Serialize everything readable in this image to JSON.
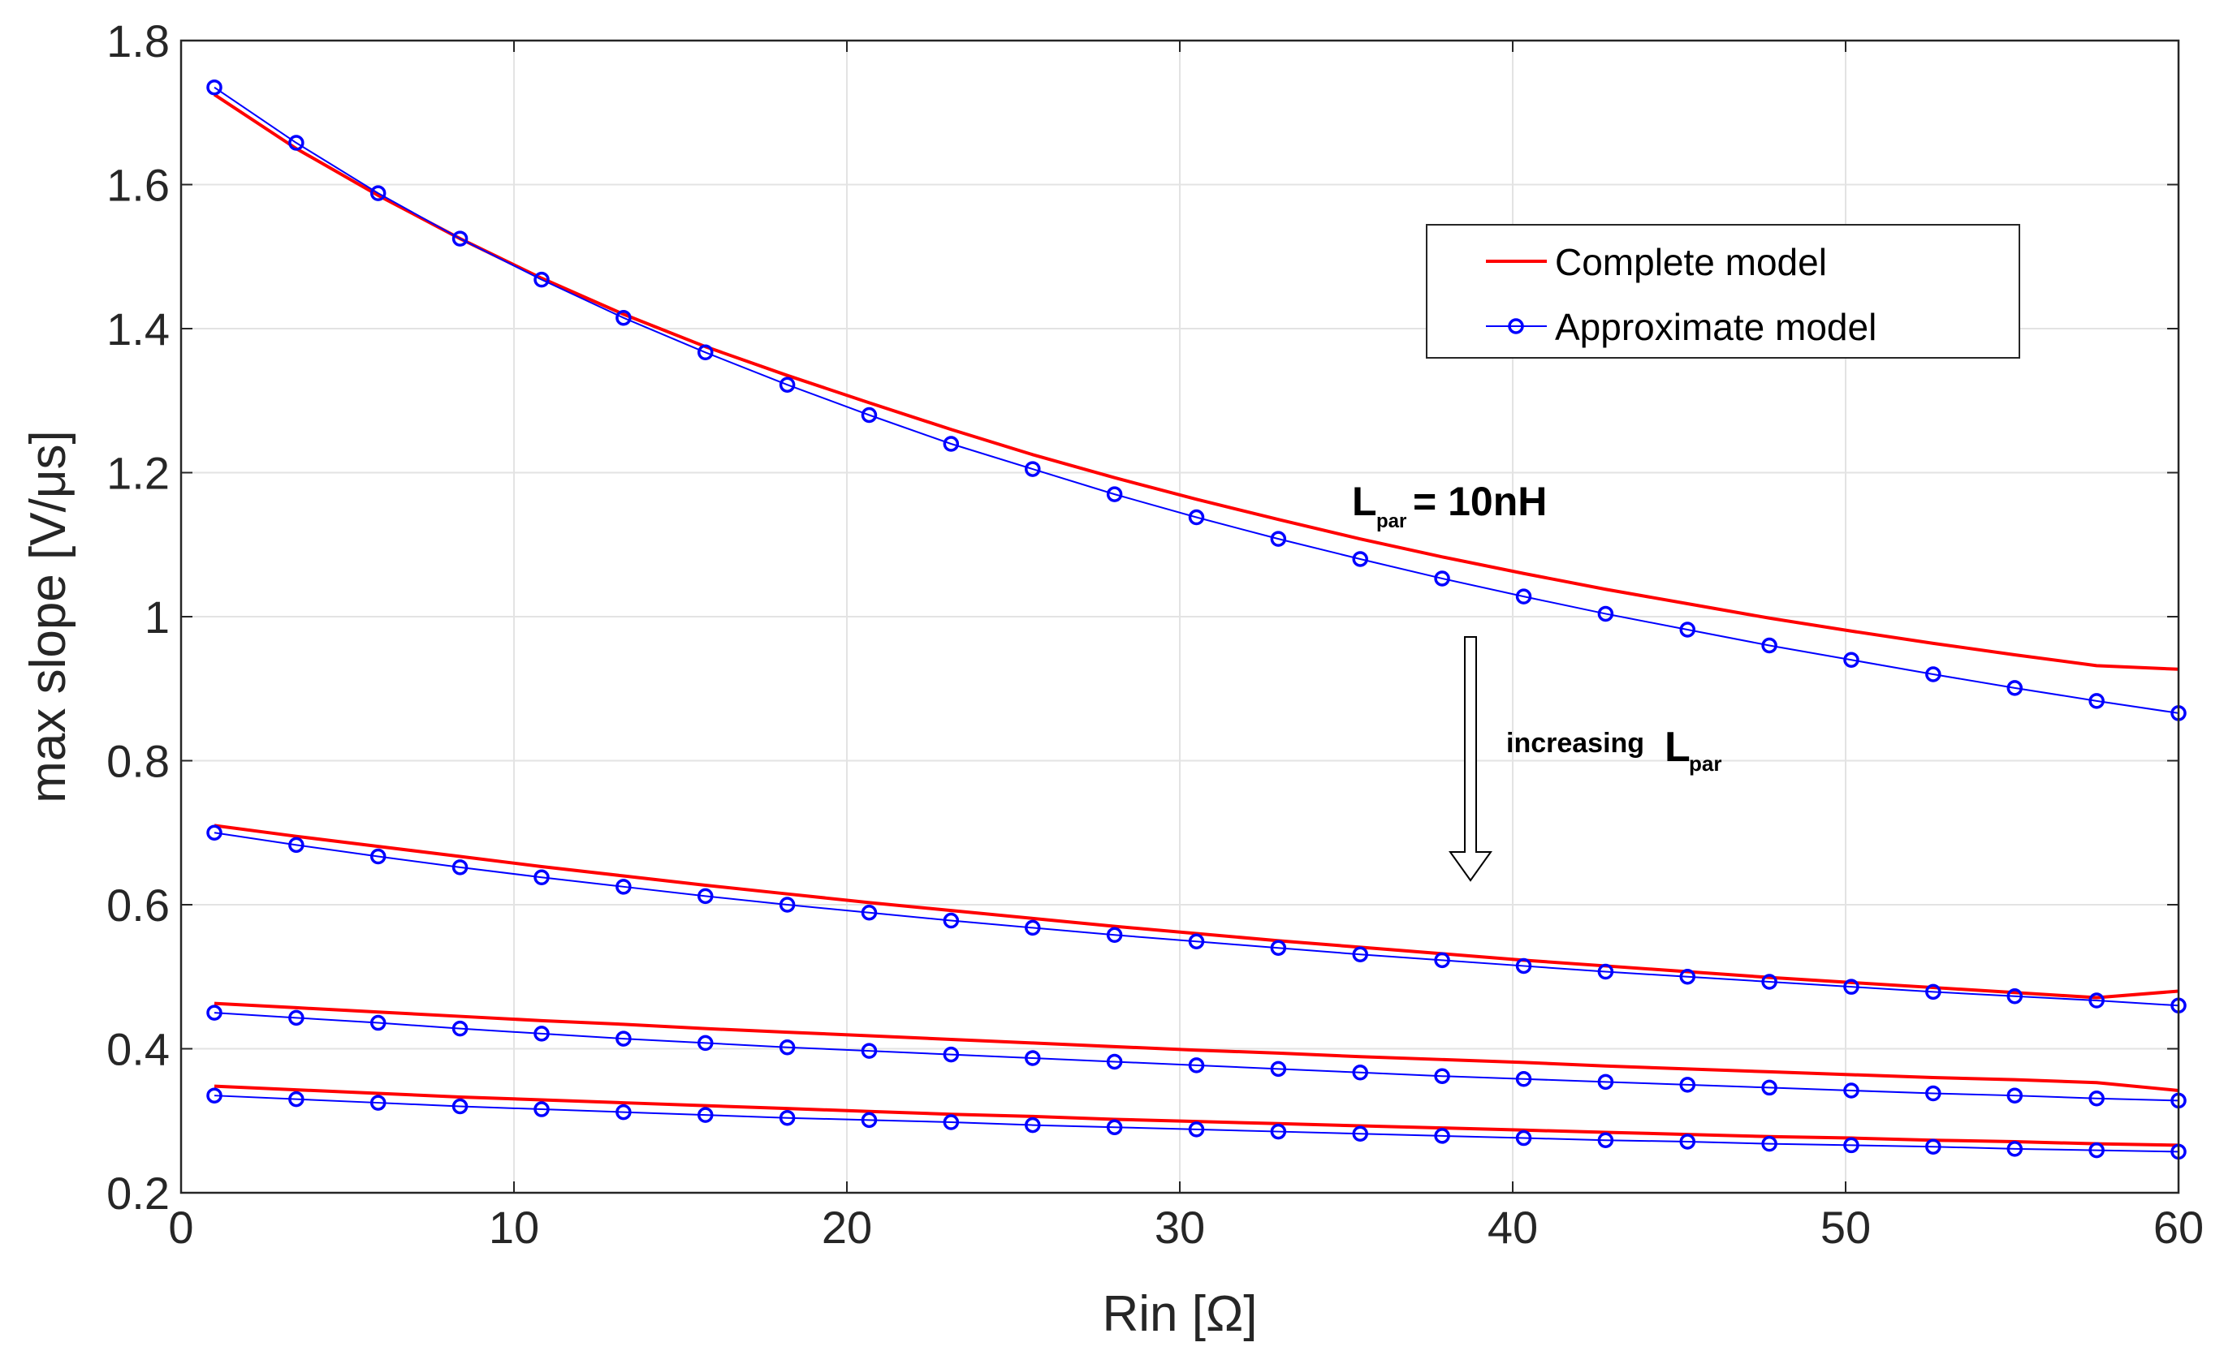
{
  "chart_data": {
    "type": "line",
    "title": "",
    "xlabel": "Rin [Ω]",
    "ylabel": "max slope [V/μs]",
    "xlim": [
      0,
      60
    ],
    "ylim": [
      0.2,
      1.8
    ],
    "xticks": [
      0,
      10,
      20,
      30,
      40,
      50,
      60
    ],
    "yticks": [
      0.2,
      0.4,
      0.6,
      0.8,
      1,
      1.2,
      1.4,
      1.6,
      1.8
    ],
    "xtick_labels": [
      "0",
      "10",
      "20",
      "30",
      "40",
      "50",
      "60"
    ],
    "ytick_labels": [
      "0.2",
      "0.4",
      "0.6",
      "0.8",
      "1",
      "1.2",
      "1.4",
      "1.6",
      "1.8"
    ],
    "grid": true,
    "legend": {
      "position": "top-right",
      "entries": [
        {
          "label": "Complete model",
          "color": "#ff0000",
          "marker": "none"
        },
        {
          "label": "Approximate model",
          "color": "#0000ff",
          "marker": "circle"
        }
      ]
    },
    "annotations": {
      "lpar_letter": "L",
      "lpar_sub": "par",
      "lpar_value": "= 10nH",
      "increasing_text": "increasing",
      "increasing_letter": "L",
      "increasing_sub": "par"
    },
    "x": [
      1,
      3.46,
      5.92,
      8.38,
      10.83,
      13.29,
      15.75,
      18.21,
      20.67,
      23.13,
      25.58,
      28.04,
      30.5,
      32.96,
      35.42,
      37.88,
      40.33,
      42.79,
      45.25,
      47.71,
      50.17,
      52.63,
      55.08,
      57.54,
      60
    ],
    "series": [
      {
        "name": "Complete model",
        "group": 1,
        "color": "#ff0000",
        "values": [
          1.725,
          1.65,
          1.585,
          1.525,
          1.47,
          1.42,
          1.375,
          1.335,
          1.297,
          1.26,
          1.225,
          1.193,
          1.163,
          1.135,
          1.108,
          1.083,
          1.06,
          1.038,
          1.018,
          0.998,
          0.98,
          0.963,
          0.947,
          0.932,
          0.927
        ]
      },
      {
        "name": "Approximate model",
        "group": 1,
        "color": "#0000ff",
        "values": [
          1.735,
          1.658,
          1.588,
          1.525,
          1.468,
          1.415,
          1.367,
          1.322,
          1.28,
          1.24,
          1.205,
          1.17,
          1.138,
          1.108,
          1.08,
          1.053,
          1.028,
          1.004,
          0.982,
          0.96,
          0.94,
          0.92,
          0.901,
          0.883,
          0.866
        ]
      },
      {
        "name": "Complete model",
        "group": 2,
        "color": "#ff0000",
        "values": [
          0.71,
          0.695,
          0.681,
          0.667,
          0.653,
          0.64,
          0.627,
          0.615,
          0.603,
          0.592,
          0.581,
          0.57,
          0.56,
          0.55,
          0.541,
          0.532,
          0.523,
          0.515,
          0.507,
          0.499,
          0.492,
          0.485,
          0.478,
          0.471,
          0.48
        ]
      },
      {
        "name": "Approximate model",
        "group": 2,
        "color": "#0000ff",
        "values": [
          0.7,
          0.683,
          0.667,
          0.652,
          0.638,
          0.625,
          0.612,
          0.6,
          0.589,
          0.578,
          0.568,
          0.558,
          0.549,
          0.54,
          0.531,
          0.523,
          0.515,
          0.507,
          0.5,
          0.493,
          0.486,
          0.479,
          0.473,
          0.467,
          0.46
        ]
      },
      {
        "name": "Complete model",
        "group": 3,
        "color": "#ff0000",
        "values": [
          0.463,
          0.457,
          0.451,
          0.445,
          0.439,
          0.434,
          0.428,
          0.423,
          0.418,
          0.413,
          0.408,
          0.403,
          0.398,
          0.394,
          0.389,
          0.385,
          0.381,
          0.376,
          0.372,
          0.368,
          0.364,
          0.36,
          0.357,
          0.353,
          0.342
        ]
      },
      {
        "name": "Approximate model",
        "group": 3,
        "color": "#0000ff",
        "values": [
          0.45,
          0.443,
          0.436,
          0.428,
          0.421,
          0.414,
          0.408,
          0.402,
          0.397,
          0.392,
          0.387,
          0.382,
          0.377,
          0.372,
          0.367,
          0.362,
          0.358,
          0.354,
          0.35,
          0.346,
          0.342,
          0.338,
          0.335,
          0.331,
          0.328
        ]
      },
      {
        "name": "Complete model",
        "group": 4,
        "color": "#ff0000",
        "values": [
          0.348,
          0.343,
          0.338,
          0.333,
          0.329,
          0.325,
          0.321,
          0.317,
          0.313,
          0.309,
          0.306,
          0.302,
          0.299,
          0.296,
          0.293,
          0.29,
          0.287,
          0.284,
          0.281,
          0.278,
          0.276,
          0.273,
          0.271,
          0.268,
          0.266
        ]
      },
      {
        "name": "Approximate model",
        "group": 4,
        "color": "#0000ff",
        "values": [
          0.335,
          0.33,
          0.325,
          0.32,
          0.316,
          0.312,
          0.308,
          0.304,
          0.301,
          0.298,
          0.294,
          0.291,
          0.288,
          0.285,
          0.282,
          0.279,
          0.276,
          0.273,
          0.271,
          0.268,
          0.266,
          0.264,
          0.261,
          0.259,
          0.257
        ]
      }
    ]
  }
}
